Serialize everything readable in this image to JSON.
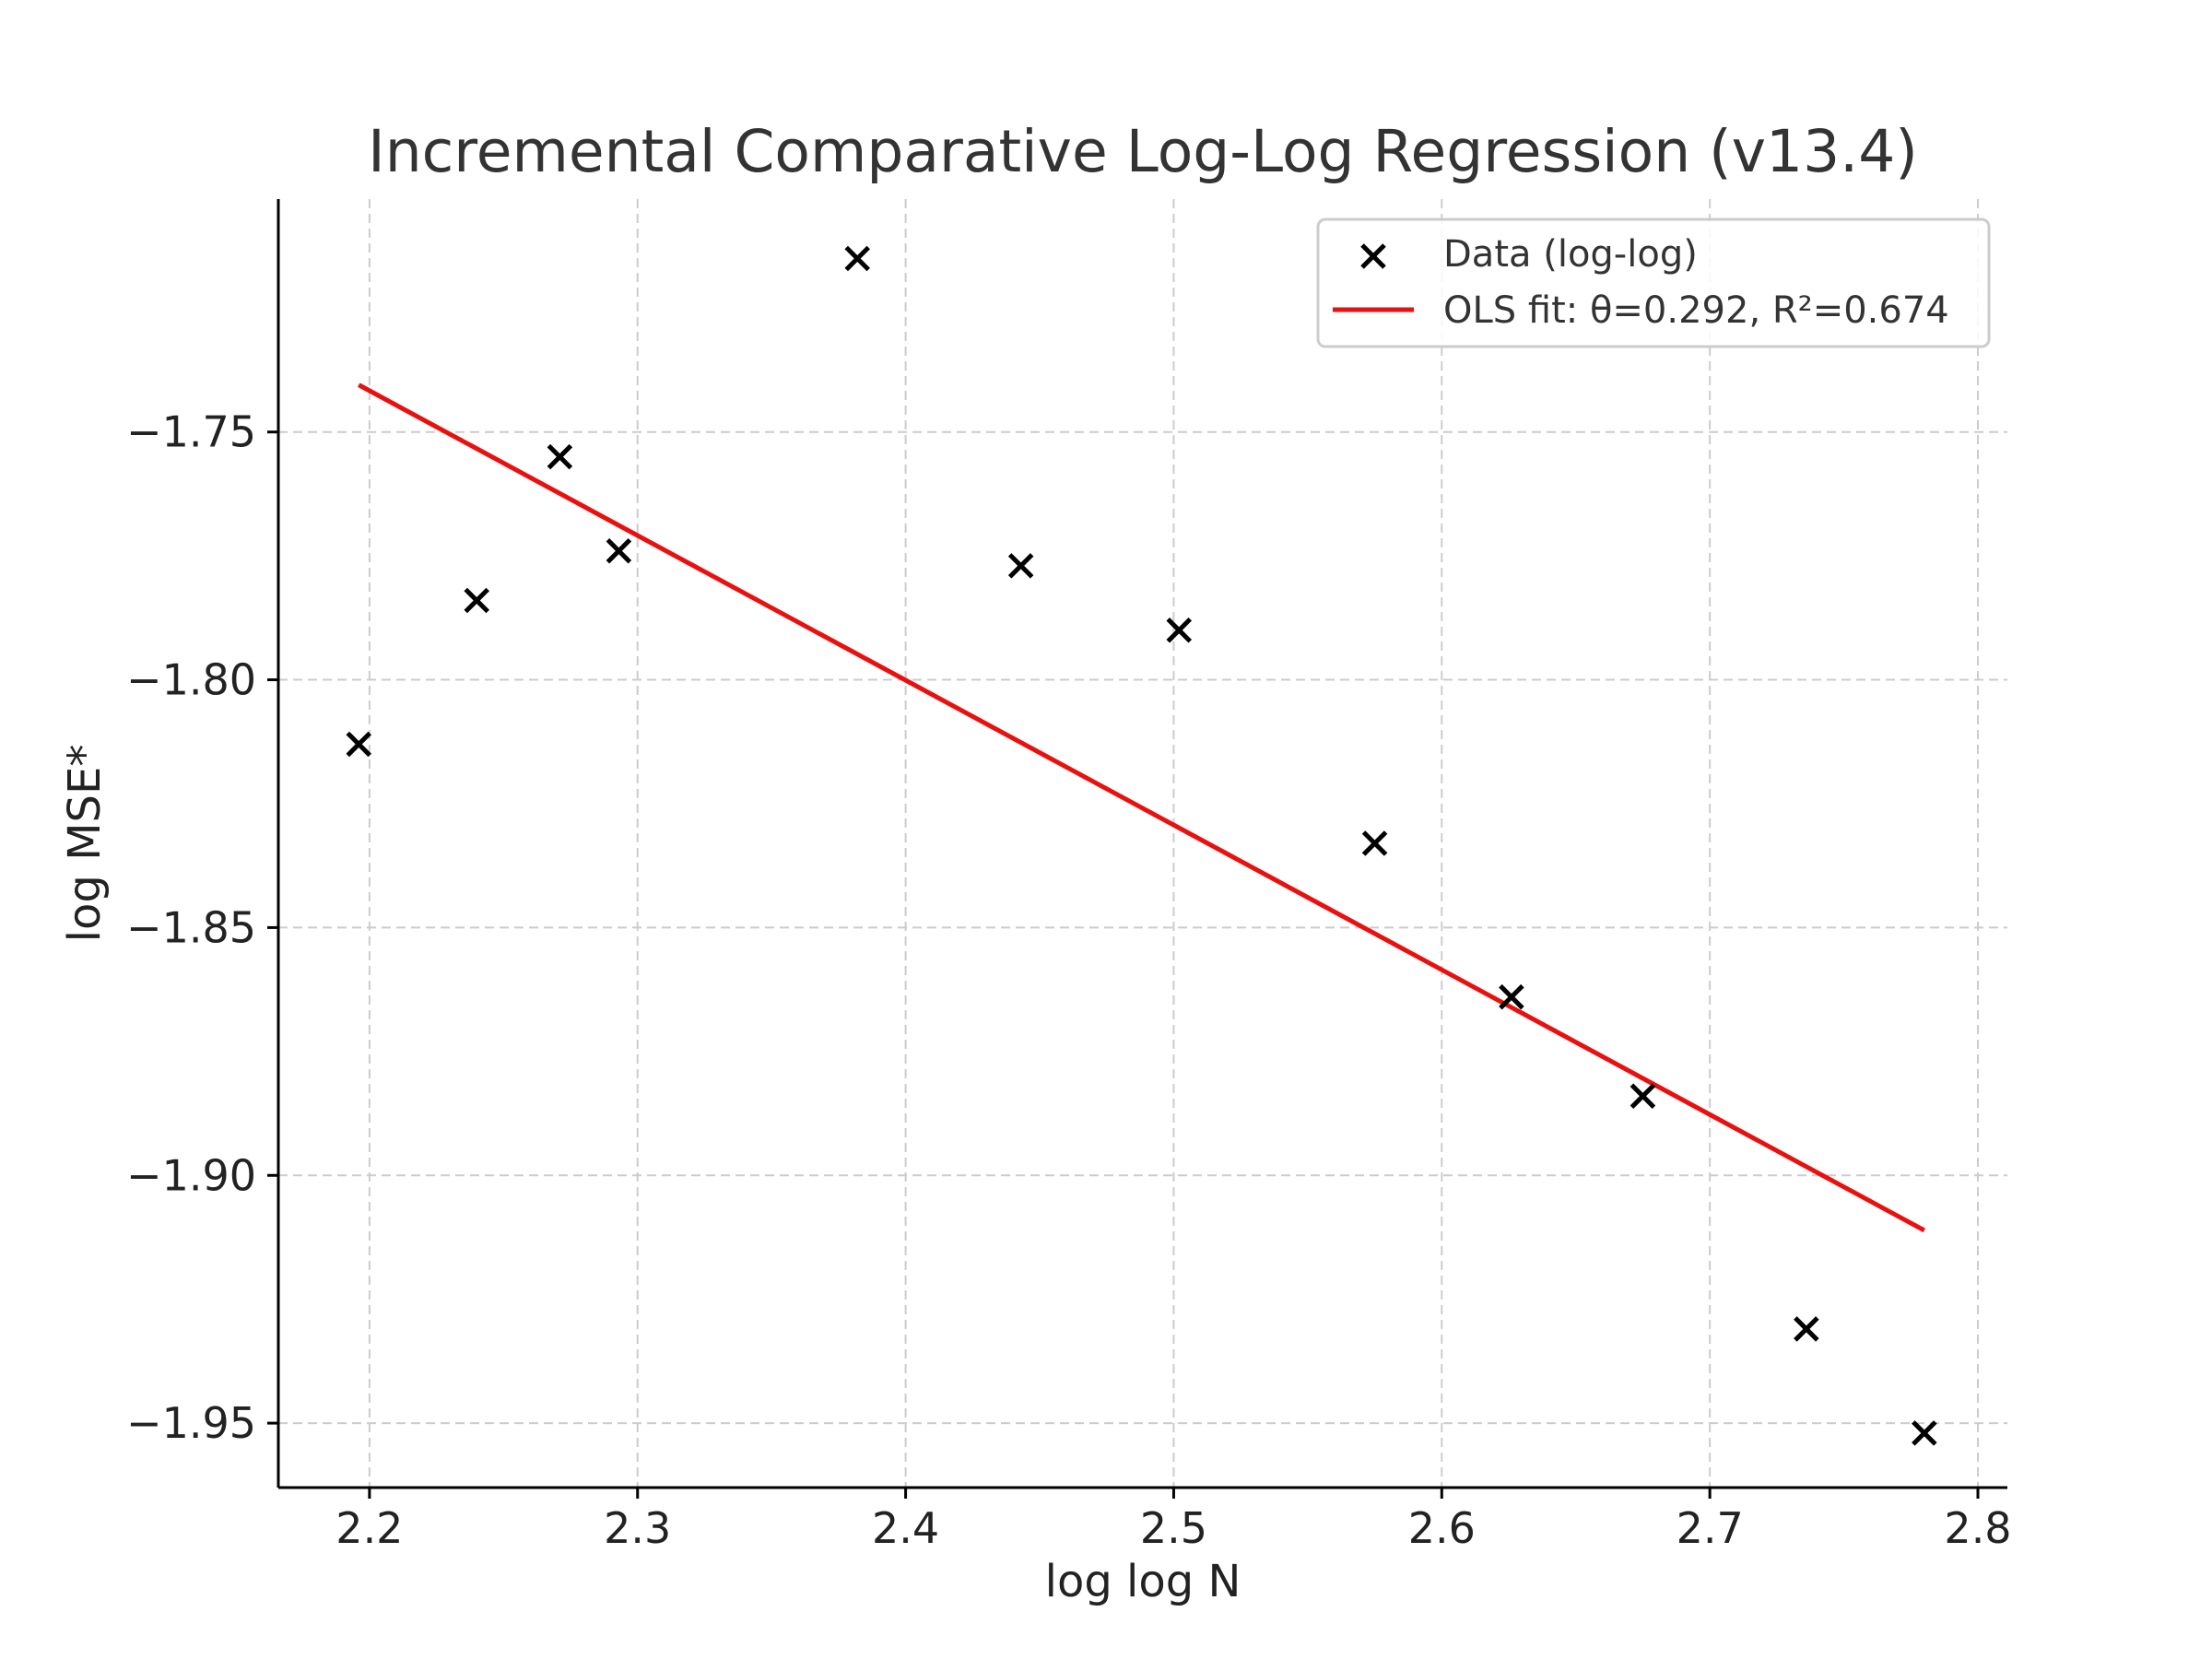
{
  "chart_data": {
    "type": "scatter",
    "title": "Incremental Comparative Log-Log Regression (v13.4)",
    "xlabel": "log log N",
    "ylabel": "log MSE*",
    "xlim": [
      2.166,
      2.811
    ],
    "ylim": [
      -1.963,
      -1.703
    ],
    "xticks": [
      2.2,
      2.3,
      2.4,
      2.5,
      2.6,
      2.7,
      2.8
    ],
    "xtick_labels": [
      "2.2",
      "2.3",
      "2.4",
      "2.5",
      "2.6",
      "2.7",
      "2.8"
    ],
    "yticks": [
      -1.75,
      -1.8,
      -1.85,
      -1.9,
      -1.95
    ],
    "ytick_labels": [
      "−1.75",
      "−1.80",
      "−1.85",
      "−1.90",
      "−1.95"
    ],
    "grid": true,
    "legend_position": "top-right",
    "series": [
      {
        "name": "Data (log-log)",
        "kind": "scatter",
        "marker": "x",
        "color": "#000000",
        "points": [
          {
            "x": 2.196,
            "y": -1.813
          },
          {
            "x": 2.24,
            "y": -1.784
          },
          {
            "x": 2.271,
            "y": -1.755
          },
          {
            "x": 2.293,
            "y": -1.774
          },
          {
            "x": 2.382,
            "y": -1.715
          },
          {
            "x": 2.443,
            "y": -1.777
          },
          {
            "x": 2.502,
            "y": -1.79
          },
          {
            "x": 2.575,
            "y": -1.833
          },
          {
            "x": 2.626,
            "y": -1.864
          },
          {
            "x": 2.675,
            "y": -1.884
          },
          {
            "x": 2.736,
            "y": -1.931
          },
          {
            "x": 2.78,
            "y": -1.952
          }
        ]
      },
      {
        "name": "OLS fit: θ=0.292, R²=0.674",
        "kind": "line",
        "color": "#e8110f",
        "points": [
          {
            "x": 2.196,
            "y": -1.7405
          },
          {
            "x": 2.78,
            "y": -1.9111
          }
        ]
      }
    ]
  }
}
